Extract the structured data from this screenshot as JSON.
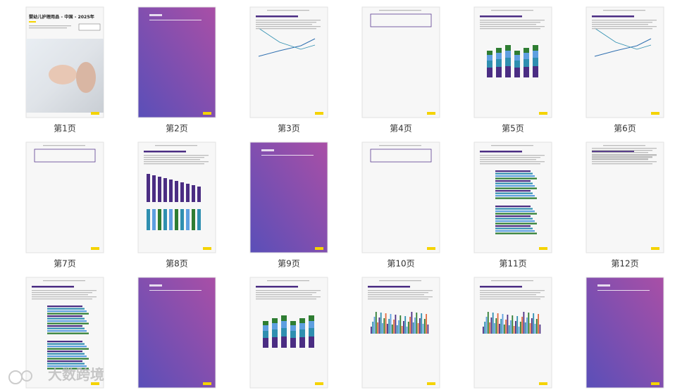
{
  "cover": {
    "title": "婴幼儿护理用品 - 中国 - 2025年"
  },
  "pages": [
    {
      "label": "第1页"
    },
    {
      "label": "第2页"
    },
    {
      "label": "第3页"
    },
    {
      "label": "第4页"
    },
    {
      "label": "第5页"
    },
    {
      "label": "第6页"
    },
    {
      "label": "第7页"
    },
    {
      "label": "第8页"
    },
    {
      "label": "第9页"
    },
    {
      "label": "第10页"
    },
    {
      "label": "第11页"
    },
    {
      "label": "第12页"
    }
  ],
  "watermark": "大数跨境"
}
